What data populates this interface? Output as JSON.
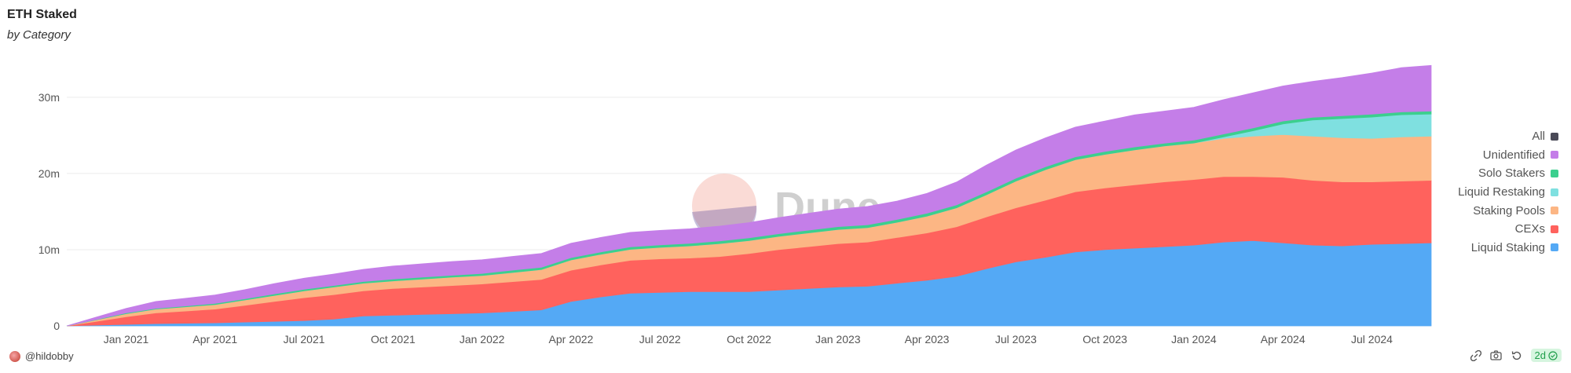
{
  "title": "ETH Staked",
  "subtitle": "by Category",
  "watermark": "Dune",
  "author": "@hildobby",
  "freshness_badge": "2d",
  "footer_icons": [
    "link-icon",
    "camera-icon",
    "refresh-icon"
  ],
  "legend": [
    {
      "label": "All",
      "color": "#4a4a57"
    },
    {
      "label": "Unidentified",
      "color": "#c47ee8"
    },
    {
      "label": "Solo Stakers",
      "color": "#3ccf8e"
    },
    {
      "label": "Liquid Restaking",
      "color": "#7fe0e0"
    },
    {
      "label": "Staking Pools",
      "color": "#fcb684"
    },
    {
      "label": "CEXs",
      "color": "#ff625d"
    },
    {
      "label": "Liquid Staking",
      "color": "#54a9f5"
    }
  ],
  "chart_data": {
    "type": "area",
    "stacked": true,
    "title": "ETH Staked",
    "subtitle": "by Category",
    "x": [
      "2020-11",
      "2020-12",
      "2021-01",
      "2021-02",
      "2021-03",
      "2021-04",
      "2021-05",
      "2021-06",
      "2021-07",
      "2021-08",
      "2021-09",
      "2021-10",
      "2021-11",
      "2021-12",
      "2022-01",
      "2022-02",
      "2022-03",
      "2022-04",
      "2022-05",
      "2022-06",
      "2022-07",
      "2022-08",
      "2022-09",
      "2022-10",
      "2022-11",
      "2022-12",
      "2023-01",
      "2023-02",
      "2023-03",
      "2023-04",
      "2023-05",
      "2023-06",
      "2023-07",
      "2023-08",
      "2023-09",
      "2023-10",
      "2023-11",
      "2023-12",
      "2024-01",
      "2024-02",
      "2024-03",
      "2024-04",
      "2024-05",
      "2024-06",
      "2024-07",
      "2024-08",
      "2024-09"
    ],
    "x_ticks": [
      "Jan 2021",
      "Apr 2021",
      "Jul 2021",
      "Oct 2021",
      "Jan 2022",
      "Apr 2022",
      "Jul 2022",
      "Oct 2022",
      "Jan 2023",
      "Apr 2023",
      "Jul 2023",
      "Oct 2023",
      "Jan 2024",
      "Apr 2024",
      "Jul 2024"
    ],
    "x_tick_dates": [
      "2021-01",
      "2021-04",
      "2021-07",
      "2021-10",
      "2022-01",
      "2022-04",
      "2022-07",
      "2022-10",
      "2023-01",
      "2023-04",
      "2023-07",
      "2023-10",
      "2024-01",
      "2024-04",
      "2024-07"
    ],
    "y_ticks": [
      "0",
      "10m",
      "20m",
      "30m"
    ],
    "y_tick_values": [
      0,
      10,
      20,
      30
    ],
    "ylim": [
      0,
      34
    ],
    "yunit": "m",
    "grid": true,
    "legend_position": "right",
    "series": [
      {
        "name": "Liquid Staking",
        "color": "#54a9f5",
        "values": [
          0.0,
          0.1,
          0.2,
          0.3,
          0.35,
          0.4,
          0.5,
          0.6,
          0.7,
          0.9,
          1.3,
          1.4,
          1.5,
          1.6,
          1.7,
          1.9,
          2.1,
          3.2,
          3.8,
          4.3,
          4.4,
          4.5,
          4.5,
          4.5,
          4.7,
          4.9,
          5.1,
          5.2,
          5.6,
          6.0,
          6.5,
          7.5,
          8.4,
          9.0,
          9.7,
          10.0,
          10.2,
          10.4,
          10.6,
          11.0,
          11.2,
          10.9,
          10.6,
          10.5,
          10.7,
          10.8,
          10.9
        ]
      },
      {
        "name": "CEXs",
        "color": "#ff625d",
        "values": [
          0.0,
          0.5,
          1.0,
          1.4,
          1.6,
          1.8,
          2.2,
          2.6,
          3.0,
          3.2,
          3.3,
          3.5,
          3.6,
          3.7,
          3.8,
          3.9,
          4.0,
          4.1,
          4.2,
          4.3,
          4.4,
          4.4,
          4.6,
          5.0,
          5.3,
          5.5,
          5.7,
          5.8,
          6.0,
          6.2,
          6.5,
          6.8,
          7.1,
          7.5,
          7.9,
          8.1,
          8.3,
          8.5,
          8.6,
          8.6,
          8.4,
          8.6,
          8.5,
          8.4,
          8.2,
          8.2,
          8.2
        ]
      },
      {
        "name": "Staking Pools",
        "color": "#fcb684",
        "values": [
          0.0,
          0.2,
          0.4,
          0.5,
          0.55,
          0.6,
          0.7,
          0.8,
          0.9,
          1.0,
          1.0,
          1.0,
          1.05,
          1.1,
          1.1,
          1.2,
          1.3,
          1.35,
          1.4,
          1.45,
          1.5,
          1.6,
          1.7,
          1.7,
          1.75,
          1.8,
          1.85,
          1.9,
          2.0,
          2.2,
          2.5,
          2.9,
          3.5,
          4.0,
          4.2,
          4.4,
          4.6,
          4.7,
          4.8,
          5.0,
          5.3,
          5.6,
          5.8,
          5.8,
          5.7,
          5.8,
          5.8
        ]
      },
      {
        "name": "Liquid Restaking",
        "color": "#7fe0e0",
        "values": [
          0.0,
          0.0,
          0.0,
          0.0,
          0.0,
          0.0,
          0.0,
          0.0,
          0.0,
          0.0,
          0.0,
          0.0,
          0.0,
          0.0,
          0.0,
          0.0,
          0.0,
          0.0,
          0.0,
          0.0,
          0.0,
          0.0,
          0.0,
          0.0,
          0.0,
          0.0,
          0.0,
          0.0,
          0.0,
          0.0,
          0.0,
          0.0,
          0.0,
          0.0,
          0.0,
          0.0,
          0.0,
          0.0,
          0.0,
          0.2,
          0.7,
          1.4,
          2.1,
          2.5,
          2.8,
          2.9,
          2.9
        ]
      },
      {
        "name": "Solo Stakers",
        "color": "#3ccf8e",
        "values": [
          0.0,
          0.05,
          0.1,
          0.1,
          0.12,
          0.15,
          0.15,
          0.2,
          0.2,
          0.2,
          0.22,
          0.25,
          0.25,
          0.25,
          0.28,
          0.3,
          0.3,
          0.3,
          0.3,
          0.32,
          0.33,
          0.33,
          0.34,
          0.35,
          0.35,
          0.36,
          0.37,
          0.37,
          0.38,
          0.38,
          0.38,
          0.38,
          0.38,
          0.38,
          0.38,
          0.38,
          0.38,
          0.38,
          0.38,
          0.38,
          0.38,
          0.38,
          0.38,
          0.38,
          0.38,
          0.38,
          0.38
        ]
      },
      {
        "name": "Unidentified",
        "color": "#c47ee8",
        "values": [
          0.0,
          0.3,
          0.6,
          0.9,
          1.0,
          1.1,
          1.2,
          1.35,
          1.45,
          1.5,
          1.6,
          1.7,
          1.75,
          1.8,
          1.8,
          1.8,
          1.8,
          1.9,
          1.9,
          1.9,
          1.9,
          1.9,
          1.95,
          2.0,
          2.1,
          2.2,
          2.3,
          2.4,
          2.4,
          2.6,
          3.0,
          3.5,
          3.7,
          3.8,
          3.9,
          4.0,
          4.2,
          4.2,
          4.3,
          4.5,
          4.6,
          4.6,
          4.7,
          5.0,
          5.4,
          5.8,
          6.0
        ]
      }
    ]
  }
}
